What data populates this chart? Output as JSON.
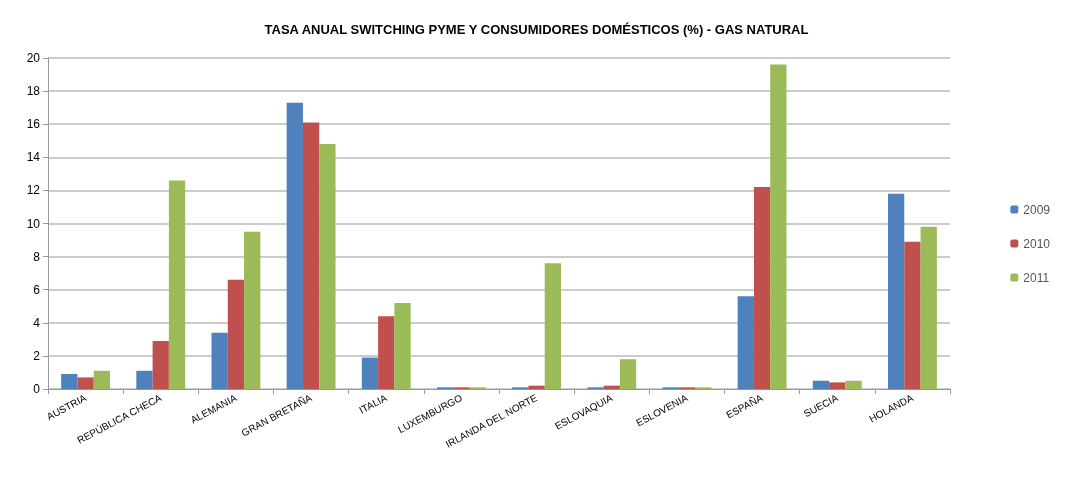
{
  "chart_data": {
    "type": "bar",
    "title": "TASA ANUAL SWITCHING PYME Y CONSUMIDORES DOMÉSTICOS (%) - GAS NATURAL",
    "categories": [
      "AUSTRIA",
      "REPÚBLICA CHECA",
      "ALEMANIA",
      "GRAN BRETAÑA",
      "ITALIA",
      "LUXEMBURGO",
      "IRLANDA DEL NORTE",
      "ESLOVAQUIA",
      "ESLOVENIA",
      "ESPAÑA",
      "SUECIA",
      "HOLANDA"
    ],
    "series": [
      {
        "name": "2009",
        "color": "#4f81bd",
        "values": [
          0.9,
          1.1,
          3.4,
          17.3,
          1.9,
          0.1,
          0.1,
          0.1,
          0.1,
          5.6,
          0.5,
          11.8
        ]
      },
      {
        "name": "2010",
        "color": "#c0504d",
        "values": [
          0.7,
          2.9,
          6.6,
          16.1,
          4.4,
          0.1,
          0.2,
          0.2,
          0.1,
          12.2,
          0.4,
          8.9
        ]
      },
      {
        "name": "2011",
        "color": "#9bbb59",
        "values": [
          1.1,
          12.6,
          9.5,
          14.8,
          5.2,
          0.1,
          7.6,
          1.8,
          0.1,
          19.6,
          0.5,
          9.8
        ]
      }
    ],
    "ylim": [
      0,
      20
    ],
    "yticks": [
      0,
      2,
      4,
      6,
      8,
      10,
      12,
      14,
      16,
      18,
      20
    ],
    "grid": "y",
    "legend": "right"
  }
}
